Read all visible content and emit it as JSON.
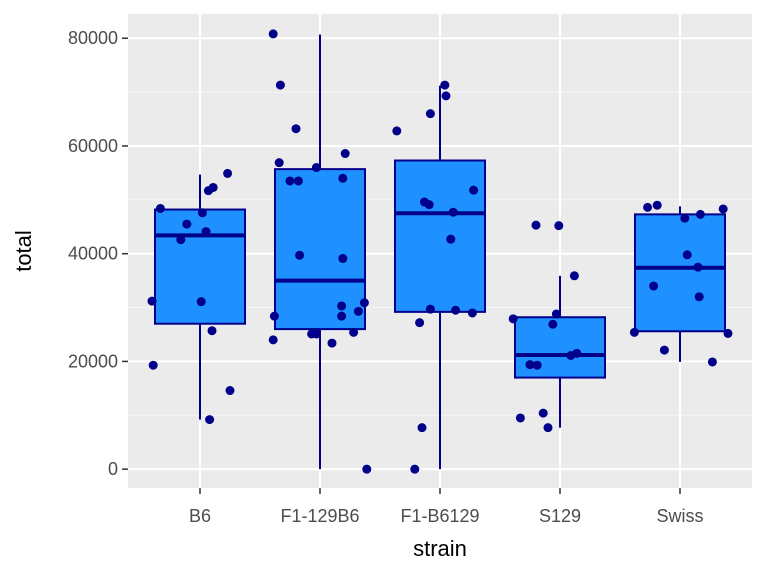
{
  "chart_data": {
    "type": "boxplot",
    "xlabel": "strain",
    "ylabel": "total",
    "categories": [
      "B6",
      "F1-129B6",
      "F1-B6129",
      "S129",
      "Swiss"
    ],
    "ylim": [
      -3500,
      84500
    ],
    "yticks": [
      0,
      20000,
      40000,
      60000,
      80000
    ],
    "ytick_labels": [
      "0",
      "20000",
      "40000",
      "60000",
      "80000"
    ],
    "grid": true,
    "legend": "none",
    "boxes": [
      {
        "category": "B6",
        "whisker_low": 9200,
        "q1": 27000,
        "median": 43400,
        "q3": 48200,
        "whisker_high": 54700
      },
      {
        "category": "F1-129B6",
        "whisker_low": 0,
        "q1": 26000,
        "median": 35000,
        "q3": 55700,
        "whisker_high": 80700
      },
      {
        "category": "F1-B6129",
        "whisker_low": 0,
        "q1": 29200,
        "median": 47500,
        "q3": 57300,
        "whisker_high": 71200
      },
      {
        "category": "S129",
        "whisker_low": 7700,
        "q1": 17000,
        "median": 21200,
        "q3": 28200,
        "whisker_high": 35900
      },
      {
        "category": "Swiss",
        "whisker_low": 19900,
        "q1": 25600,
        "median": 37400,
        "q3": 47300,
        "whisker_high": 48800
      }
    ],
    "points": [
      {
        "category": "B6",
        "jitter": -0.39,
        "y": 19300
      },
      {
        "category": "B6",
        "jitter": -0.4,
        "y": 31200
      },
      {
        "category": "B6",
        "jitter": -0.16,
        "y": 42600
      },
      {
        "category": "B6",
        "jitter": -0.11,
        "y": 45500
      },
      {
        "category": "B6",
        "jitter": -0.33,
        "y": 48400
      },
      {
        "category": "B6",
        "jitter": 0.02,
        "y": 47600
      },
      {
        "category": "B6",
        "jitter": 0.05,
        "y": 44100
      },
      {
        "category": "B6",
        "jitter": 0.01,
        "y": 31100
      },
      {
        "category": "B6",
        "jitter": 0.1,
        "y": 25700
      },
      {
        "category": "B6",
        "jitter": 0.07,
        "y": 51700
      },
      {
        "category": "B6",
        "jitter": 0.11,
        "y": 52300
      },
      {
        "category": "B6",
        "jitter": 0.23,
        "y": 54900
      },
      {
        "category": "B6",
        "jitter": 0.25,
        "y": 14600
      },
      {
        "category": "B6",
        "jitter": 0.08,
        "y": 9200
      },
      {
        "category": "F1-129B6",
        "jitter": -0.39,
        "y": 80800
      },
      {
        "category": "F1-129B6",
        "jitter": -0.33,
        "y": 71300
      },
      {
        "category": "F1-129B6",
        "jitter": -0.2,
        "y": 63200
      },
      {
        "category": "F1-129B6",
        "jitter": -0.34,
        "y": 56900
      },
      {
        "category": "F1-129B6",
        "jitter": -0.25,
        "y": 53500
      },
      {
        "category": "F1-129B6",
        "jitter": -0.18,
        "y": 53500
      },
      {
        "category": "F1-129B6",
        "jitter": -0.03,
        "y": 56000
      },
      {
        "category": "F1-129B6",
        "jitter": -0.17,
        "y": 39700
      },
      {
        "category": "F1-129B6",
        "jitter": -0.38,
        "y": 28400
      },
      {
        "category": "F1-129B6",
        "jitter": -0.39,
        "y": 24000
      },
      {
        "category": "F1-129B6",
        "jitter": -0.07,
        "y": 25100
      },
      {
        "category": "F1-129B6",
        "jitter": -0.03,
        "y": 25100
      },
      {
        "category": "F1-129B6",
        "jitter": 0.1,
        "y": 23400
      },
      {
        "category": "F1-129B6",
        "jitter": 0.18,
        "y": 30300
      },
      {
        "category": "F1-129B6",
        "jitter": 0.18,
        "y": 28400
      },
      {
        "category": "F1-129B6",
        "jitter": 0.19,
        "y": 39100
      },
      {
        "category": "F1-129B6",
        "jitter": 0.19,
        "y": 54000
      },
      {
        "category": "F1-129B6",
        "jitter": 0.21,
        "y": 58600
      },
      {
        "category": "F1-129B6",
        "jitter": 0.28,
        "y": 25400
      },
      {
        "category": "F1-129B6",
        "jitter": 0.32,
        "y": 29300
      },
      {
        "category": "F1-129B6",
        "jitter": 0.37,
        "y": 30900
      },
      {
        "category": "F1-129B6",
        "jitter": 0.39,
        "y": 0
      },
      {
        "category": "F1-B6129",
        "jitter": -0.36,
        "y": 62800
      },
      {
        "category": "F1-B6129",
        "jitter": -0.17,
        "y": 27200
      },
      {
        "category": "F1-B6129",
        "jitter": -0.13,
        "y": 49600
      },
      {
        "category": "F1-B6129",
        "jitter": -0.09,
        "y": 49100
      },
      {
        "category": "F1-B6129",
        "jitter": -0.08,
        "y": 29700
      },
      {
        "category": "F1-B6129",
        "jitter": -0.21,
        "y": 0
      },
      {
        "category": "F1-B6129",
        "jitter": -0.15,
        "y": 7700
      },
      {
        "category": "F1-B6129",
        "jitter": -0.08,
        "y": 66000
      },
      {
        "category": "F1-B6129",
        "jitter": 0.04,
        "y": 71300
      },
      {
        "category": "F1-B6129",
        "jitter": 0.05,
        "y": 69300
      },
      {
        "category": "F1-B6129",
        "jitter": 0.11,
        "y": 47700
      },
      {
        "category": "F1-B6129",
        "jitter": 0.09,
        "y": 42700
      },
      {
        "category": "F1-B6129",
        "jitter": 0.13,
        "y": 29500
      },
      {
        "category": "F1-B6129",
        "jitter": 0.27,
        "y": 29000
      },
      {
        "category": "F1-B6129",
        "jitter": 0.28,
        "y": 51800
      },
      {
        "category": "S129",
        "jitter": -0.39,
        "y": 27900
      },
      {
        "category": "S129",
        "jitter": -0.33,
        "y": 9500
      },
      {
        "category": "S129",
        "jitter": -0.25,
        "y": 19400
      },
      {
        "category": "S129",
        "jitter": -0.19,
        "y": 19300
      },
      {
        "category": "S129",
        "jitter": -0.2,
        "y": 45300
      },
      {
        "category": "S129",
        "jitter": -0.14,
        "y": 10400
      },
      {
        "category": "S129",
        "jitter": -0.1,
        "y": 7700
      },
      {
        "category": "S129",
        "jitter": -0.06,
        "y": 26900
      },
      {
        "category": "S129",
        "jitter": -0.03,
        "y": 28800
      },
      {
        "category": "S129",
        "jitter": -0.01,
        "y": 45200
      },
      {
        "category": "S129",
        "jitter": 0.09,
        "y": 21100
      },
      {
        "category": "S129",
        "jitter": 0.12,
        "y": 35900
      },
      {
        "category": "S129",
        "jitter": 0.14,
        "y": 21500
      },
      {
        "category": "Swiss",
        "jitter": -0.38,
        "y": 25400
      },
      {
        "category": "Swiss",
        "jitter": -0.27,
        "y": 48600
      },
      {
        "category": "Swiss",
        "jitter": -0.19,
        "y": 49000
      },
      {
        "category": "Swiss",
        "jitter": -0.22,
        "y": 34000
      },
      {
        "category": "Swiss",
        "jitter": -0.13,
        "y": 22100
      },
      {
        "category": "Swiss",
        "jitter": 0.04,
        "y": 46600
      },
      {
        "category": "Swiss",
        "jitter": 0.06,
        "y": 39800
      },
      {
        "category": "Swiss",
        "jitter": 0.15,
        "y": 37500
      },
      {
        "category": "Swiss",
        "jitter": 0.17,
        "y": 47300
      },
      {
        "category": "Swiss",
        "jitter": 0.16,
        "y": 32000
      },
      {
        "category": "Swiss",
        "jitter": 0.27,
        "y": 19900
      },
      {
        "category": "Swiss",
        "jitter": 0.36,
        "y": 48300
      },
      {
        "category": "Swiss",
        "jitter": 0.4,
        "y": 25200
      }
    ],
    "colors": {
      "box_fill": "#1E90FF",
      "box_line": "#00008B",
      "point": "#00008B",
      "panel_bg": "#EBEBEB",
      "grid_major": "#FFFFFF",
      "grid_minor": "#F5F5F5"
    }
  }
}
